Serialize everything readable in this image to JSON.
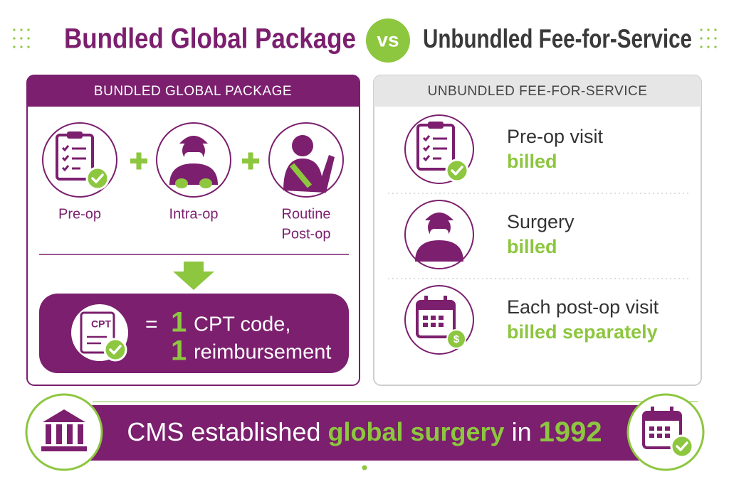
{
  "header": {
    "left": "Bundled Global Package",
    "vs": "vs",
    "right": "Unbundled Fee-for-Service"
  },
  "bundled": {
    "heading": "BUNDLED GLOBAL PACKAGE",
    "phases": [
      {
        "lines": [
          "Pre-op"
        ]
      },
      {
        "lines": [
          "Intra-op"
        ]
      },
      {
        "lines": [
          "Routine",
          "Post-op"
        ]
      }
    ],
    "result": {
      "icon_label": "CPT",
      "equals": "=",
      "count_1": "1",
      "text_1": "CPT code,",
      "count_2": "1",
      "text_2": "reimbursement"
    }
  },
  "unbundled": {
    "heading": "UNBUNDLED FEE-FOR-SERVICE",
    "rows": [
      {
        "item": "Pre-op visit",
        "status": "billed"
      },
      {
        "item": "Surgery",
        "status": "billed"
      },
      {
        "item": "Each post-op visit",
        "status": "billed separately"
      }
    ]
  },
  "banner": {
    "text_1": "CMS established",
    "highlight": "global surgery",
    "text_2": "in",
    "year": "1992"
  }
}
